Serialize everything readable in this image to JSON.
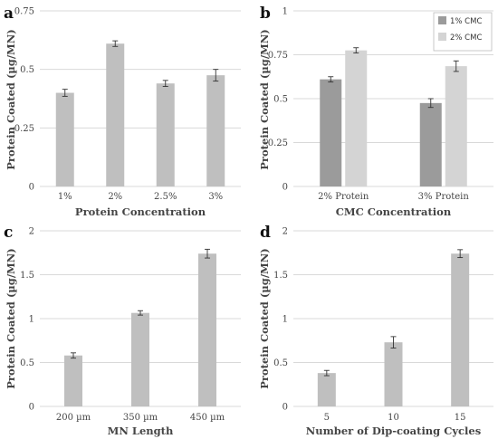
{
  "chart_data": [
    {
      "panel": "a",
      "type": "bar",
      "title": "",
      "xlabel": "Protein Concentration",
      "ylabel": "Protein Coated (µg/MN)",
      "ylim": [
        0,
        0.75
      ],
      "yticks": [
        0,
        0.25,
        0.5,
        0.75
      ],
      "ytick_labels": [
        "0",
        "0.25",
        "0.5",
        "0.75"
      ],
      "categories": [
        "1%",
        "2%",
        "2.5%",
        "3%"
      ],
      "series": [
        {
          "values": [
            0.4,
            0.61,
            0.44,
            0.475
          ],
          "errors": [
            0.015,
            0.012,
            0.013,
            0.025
          ],
          "color": "#bfbfbf"
        }
      ],
      "grid": true
    },
    {
      "panel": "b",
      "type": "bar",
      "title": "",
      "xlabel": "CMC Concentration",
      "ylabel": "Protein Coated (µg/MN)",
      "ylim": [
        0,
        1
      ],
      "yticks": [
        0,
        0.25,
        0.5,
        0.75,
        1
      ],
      "ytick_labels": [
        "0",
        "0.25",
        "0.5",
        "0.75",
        "1"
      ],
      "categories": [
        "2% Protein",
        "3% Protein"
      ],
      "series": [
        {
          "name": "1% CMC",
          "values": [
            0.61,
            0.475
          ],
          "errors": [
            0.015,
            0.025
          ],
          "color": "#9b9b9b"
        },
        {
          "name": "2% CMC",
          "values": [
            0.775,
            0.685
          ],
          "errors": [
            0.015,
            0.03
          ],
          "color": "#d4d4d4"
        }
      ],
      "legend": "top-right",
      "grid": true
    },
    {
      "panel": "c",
      "type": "bar",
      "title": "",
      "xlabel": "MN Length",
      "ylabel": "Protein Coated (µg/MN)",
      "ylim": [
        0,
        2
      ],
      "yticks": [
        0,
        0.5,
        1,
        1.5,
        2
      ],
      "ytick_labels": [
        "0",
        "0.5",
        "1",
        "1.5",
        "2"
      ],
      "categories": [
        "200 µm",
        "350 µm",
        "450 µm"
      ],
      "series": [
        {
          "values": [
            0.58,
            1.065,
            1.74
          ],
          "errors": [
            0.03,
            0.025,
            0.05
          ],
          "color": "#bfbfbf"
        }
      ],
      "grid": true
    },
    {
      "panel": "d",
      "type": "bar",
      "title": "",
      "xlabel": "Number of Dip-coating Cycles",
      "ylabel": "Protein Coated (µg/MN)",
      "ylim": [
        0,
        2
      ],
      "yticks": [
        0,
        0.5,
        1,
        1.5,
        2
      ],
      "ytick_labels": [
        "0",
        "0.5",
        "1",
        "1.5",
        "2"
      ],
      "categories": [
        "5",
        "10",
        "15"
      ],
      "series": [
        {
          "values": [
            0.38,
            0.73,
            1.74
          ],
          "errors": [
            0.03,
            0.065,
            0.045
          ],
          "color": "#bfbfbf"
        }
      ],
      "grid": true
    }
  ]
}
